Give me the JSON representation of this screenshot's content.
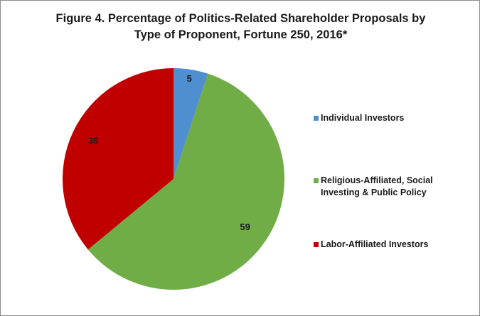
{
  "chart_data": {
    "type": "pie",
    "title_lines": [
      "Figure 4. Percentage of Politics-Related Shareholder Proposals by",
      "Type of Proponent, Fortune 250, 2016*"
    ],
    "slices": [
      {
        "label": "Individual Investors",
        "value": 5,
        "data_label": "5",
        "color": "#4f8fcf"
      },
      {
        "label": "Religious-Affiliated, Social Investing & Public Policy",
        "value": 59,
        "data_label": "59",
        "color": "#70ad47"
      },
      {
        "label": "Labor-Affiliated Investors",
        "value": 36,
        "data_label": "36",
        "color": "#c00000"
      }
    ],
    "legend_position": "right",
    "start_angle": "top",
    "direction": "clockwise"
  }
}
